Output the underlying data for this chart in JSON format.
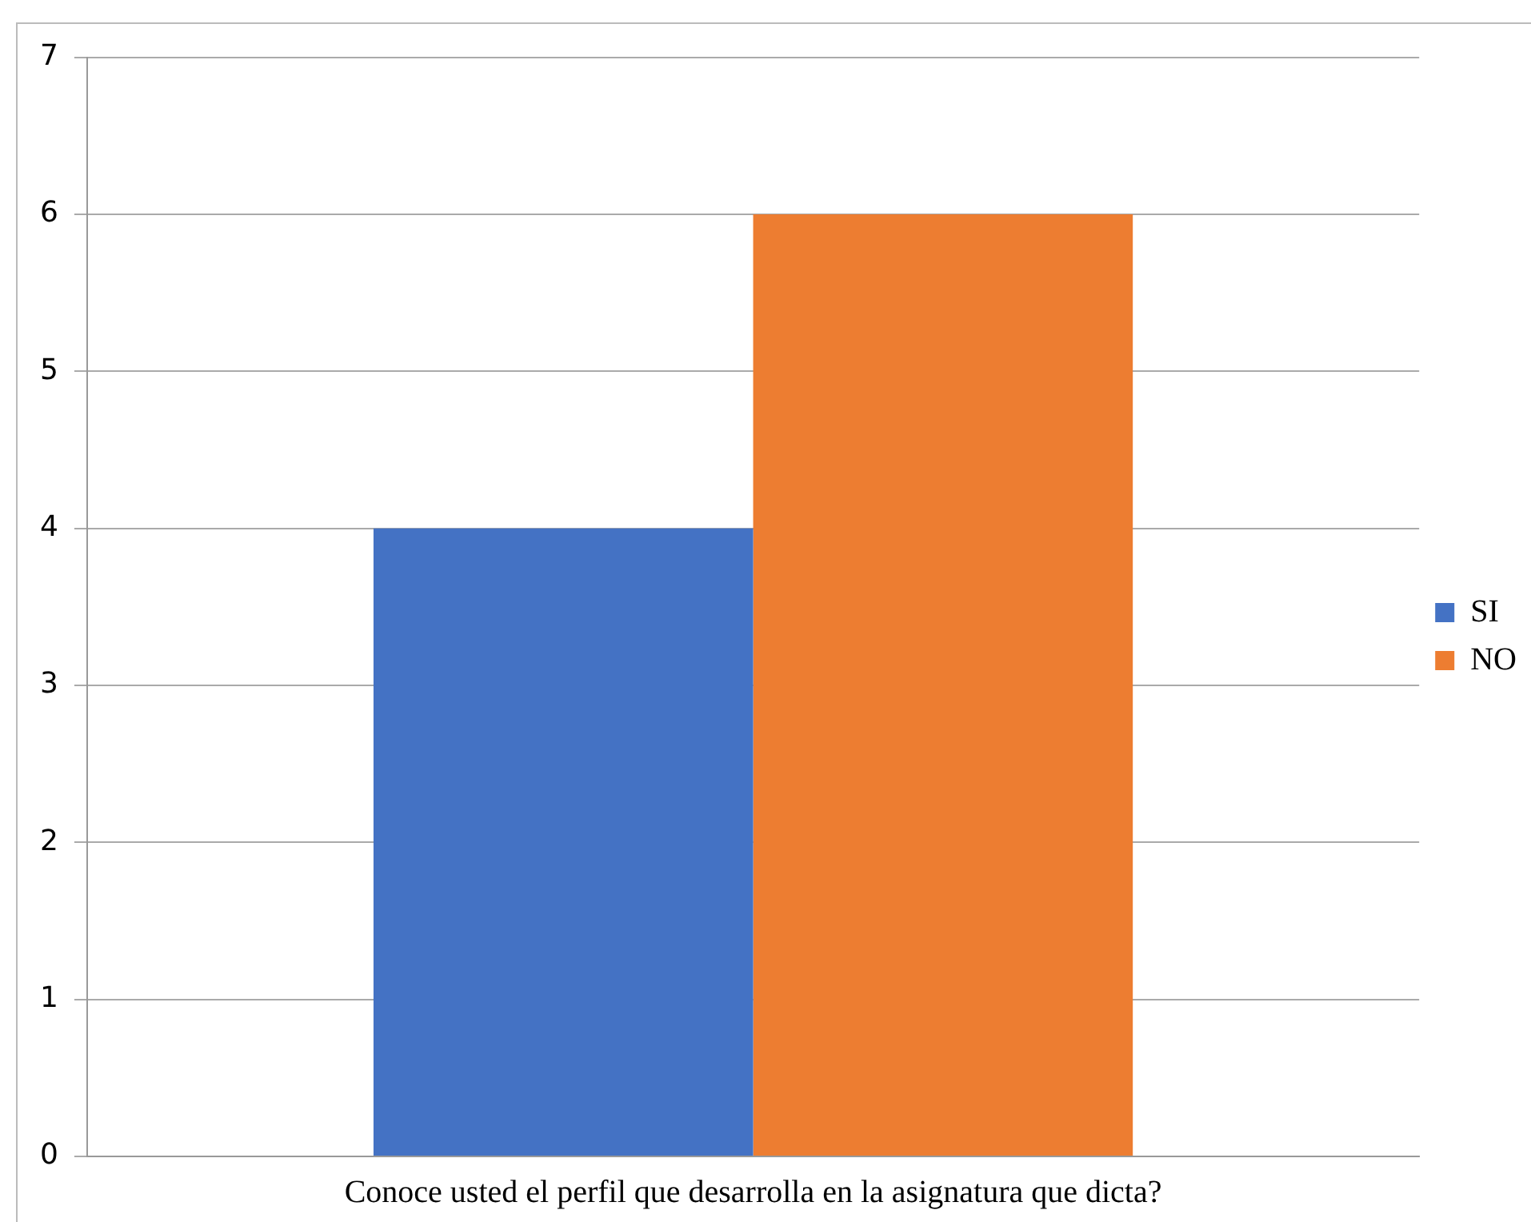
{
  "chart_data": {
    "type": "bar",
    "categories": [
      "Conoce usted el perfil que desarrolla en la asignatura que dicta?"
    ],
    "series": [
      {
        "name": "SI",
        "color": "#4472c4",
        "values": [
          4
        ]
      },
      {
        "name": "NO",
        "color": "#ed7d31",
        "values": [
          6
        ]
      }
    ],
    "ylim": [
      0,
      7
    ],
    "yticks": [
      0,
      1,
      2,
      3,
      4,
      5,
      6,
      7
    ],
    "grid": "y",
    "legend": "right"
  }
}
